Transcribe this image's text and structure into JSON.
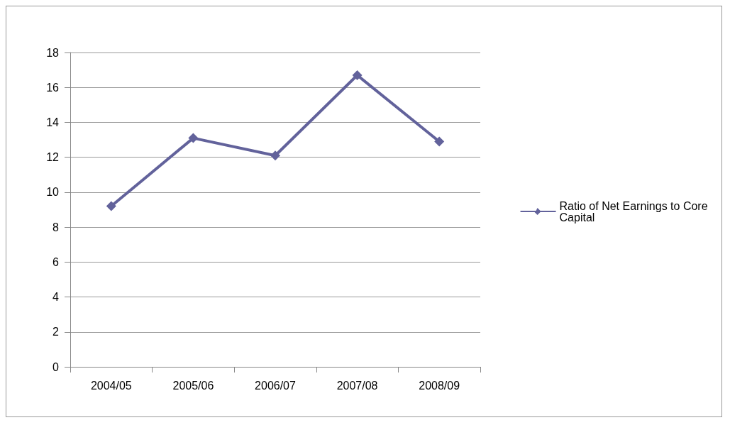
{
  "chart_data": {
    "type": "line",
    "categories": [
      "2004/05",
      "2005/06",
      "2006/07",
      "2007/08",
      "2008/09"
    ],
    "series": [
      {
        "name": "Ratio of Net Earnings to Core Capital",
        "color": "#62629b",
        "values": [
          9.2,
          13.1,
          12.1,
          16.7,
          12.9
        ]
      }
    ],
    "ylim": [
      0,
      18
    ],
    "yticks": [
      0,
      2,
      4,
      6,
      8,
      10,
      12,
      14,
      16,
      18
    ],
    "grid": "y",
    "legend": "right",
    "marker": "diamond",
    "line_style": "solid"
  }
}
